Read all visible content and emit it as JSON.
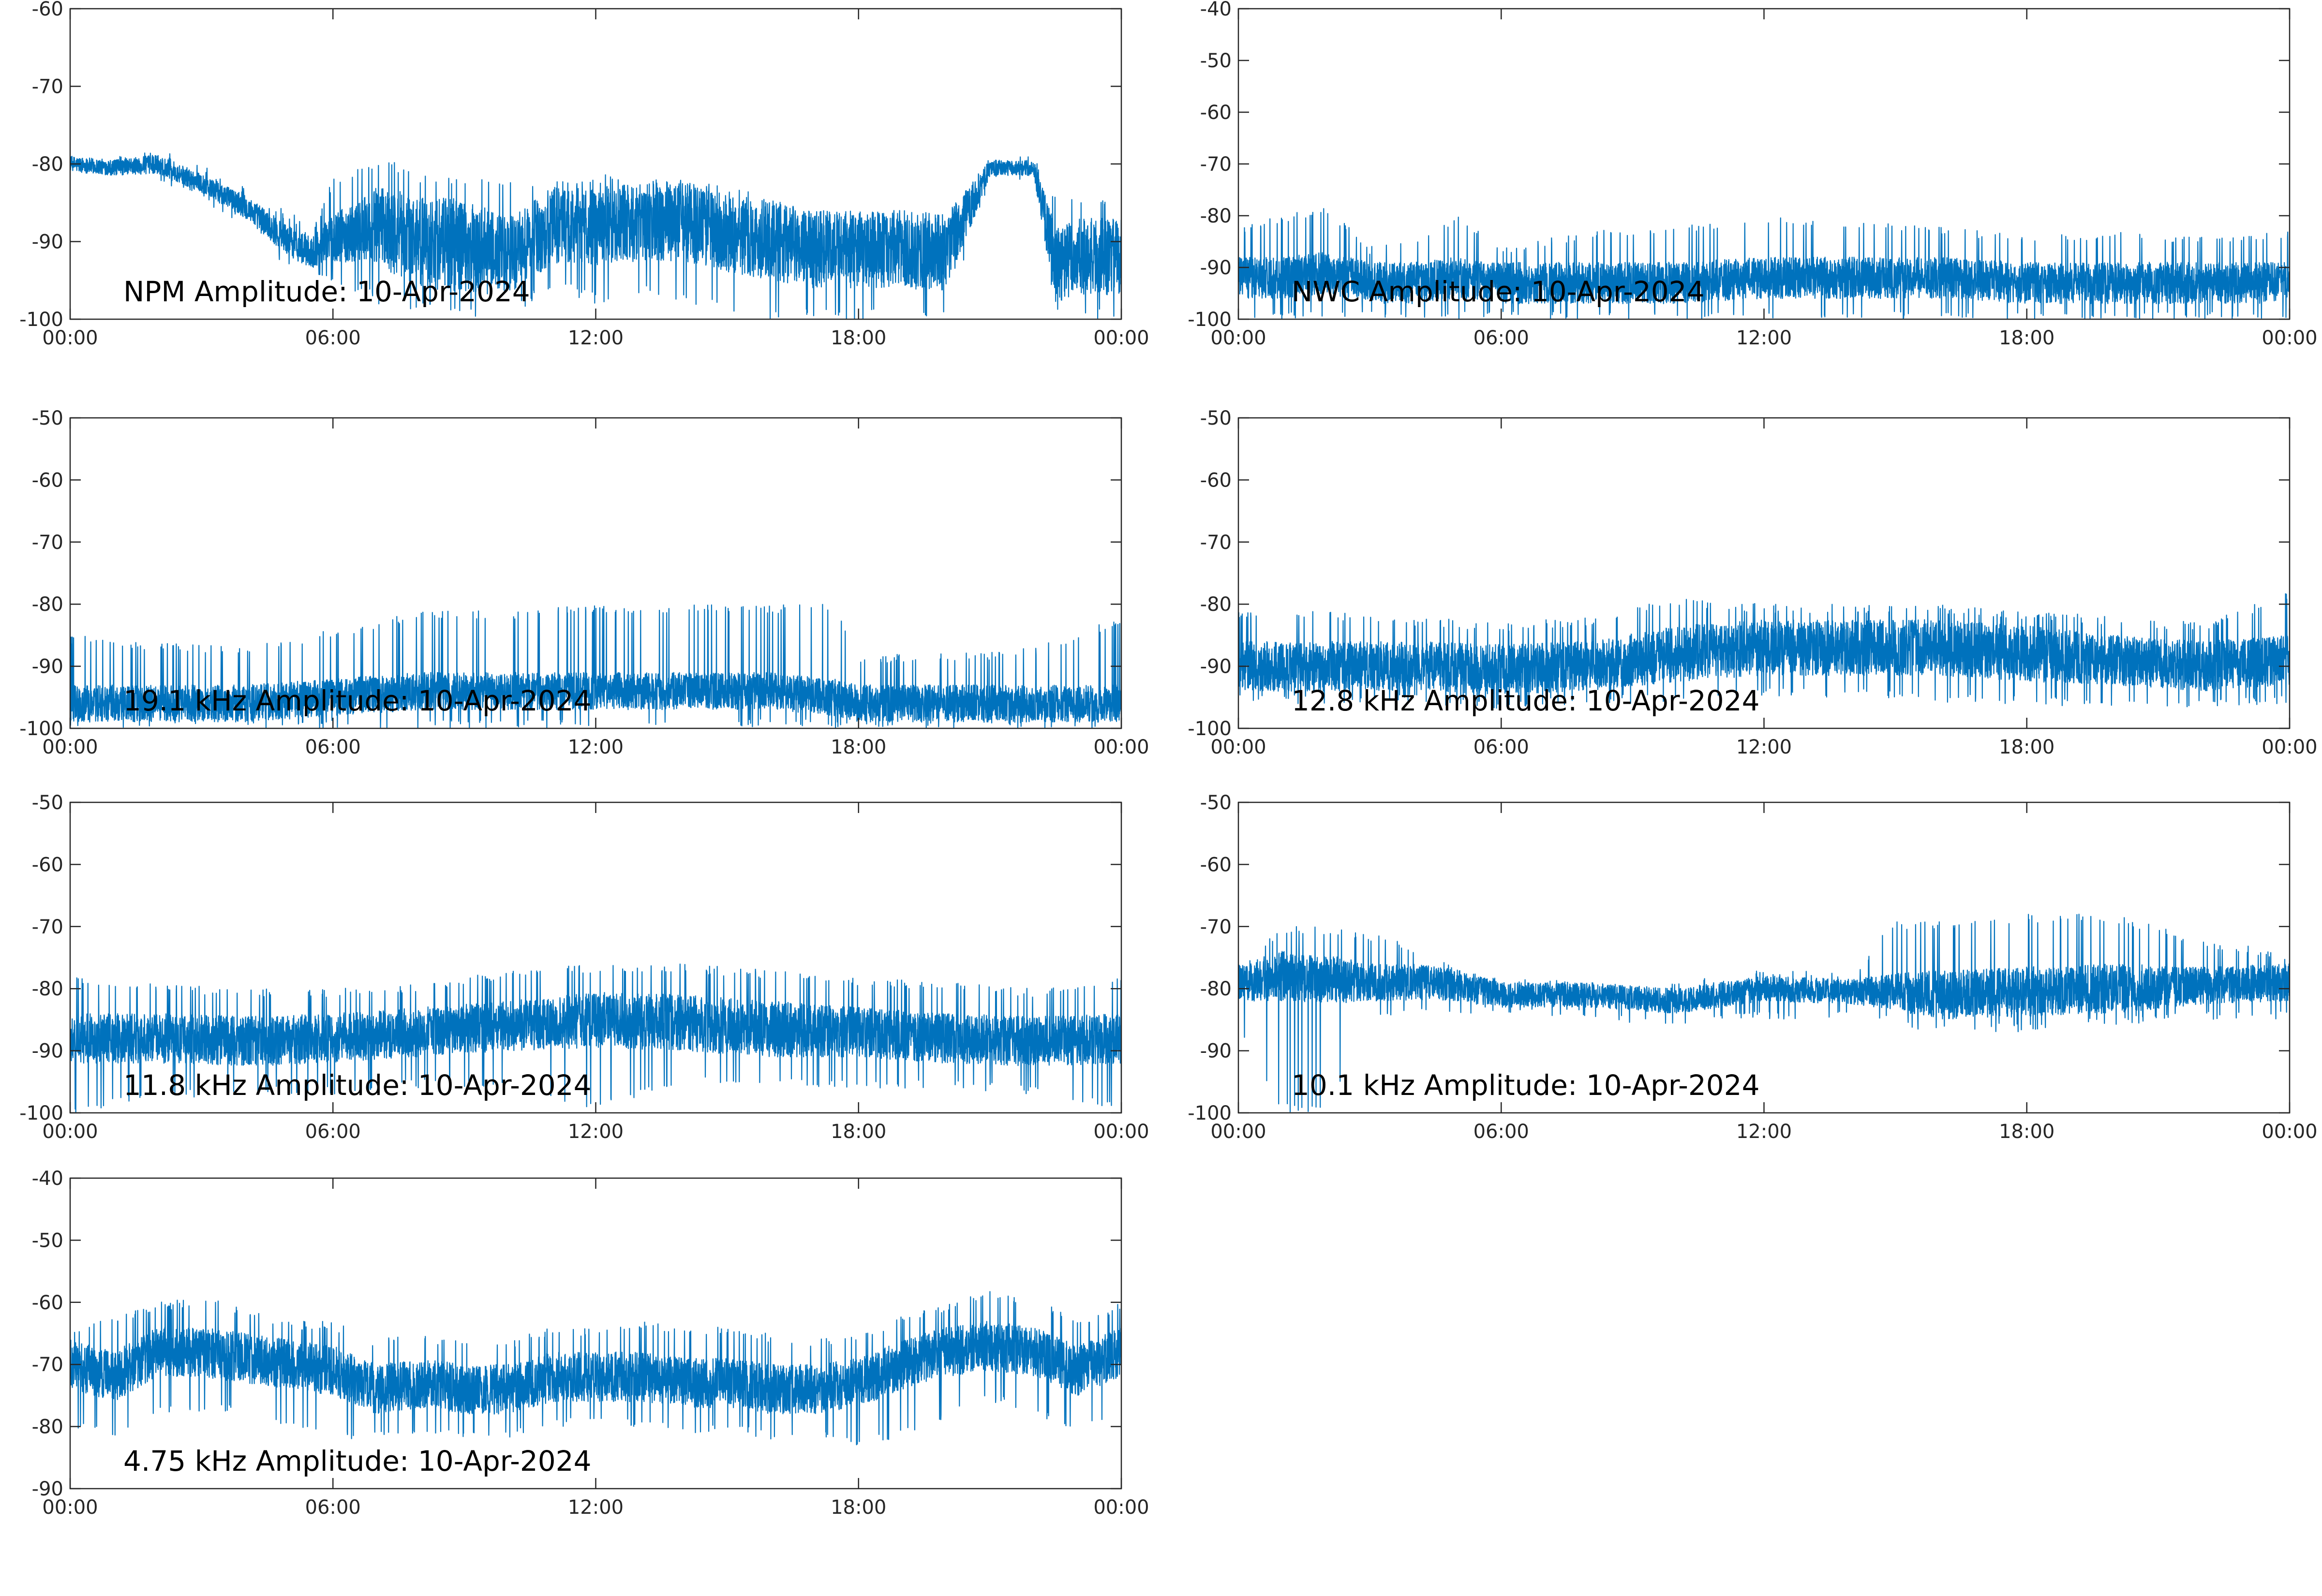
{
  "figure": {
    "colors": {
      "series": "#0072bd",
      "axis": "#262626",
      "background": "#ffffff"
    }
  },
  "chart_data": [
    {
      "type": "line",
      "title": "NPM Amplitude: 10-Apr-2024",
      "xlabel": "",
      "ylabel": "",
      "xlim": [
        "00:00",
        "24:00"
      ],
      "xticks": [
        "00:00",
        "06:00",
        "12:00",
        "18:00",
        "00:00"
      ],
      "ylim": [
        -100,
        -60
      ],
      "yticks": [
        "-60",
        "-70",
        "-80",
        "-90",
        "-100"
      ],
      "grid": false,
      "series": [
        {
          "color": "#0072bd",
          "x_hours": [
            0,
            1,
            2,
            3,
            4,
            5,
            5.5,
            6,
            7,
            8,
            9,
            10,
            11,
            12,
            13,
            14,
            15,
            16,
            17,
            18,
            19,
            20,
            21,
            21.5,
            22,
            22.5,
            23,
            24
          ],
          "center": [
            -80,
            -80.5,
            -80,
            -82.5,
            -85.5,
            -90,
            -91.5,
            -89.5,
            -88,
            -90,
            -90.5,
            -92,
            -88,
            -88,
            -87.5,
            -87.5,
            -89,
            -90,
            -91,
            -91,
            -91,
            -91.5,
            -80.5,
            -80.5,
            -80.5,
            -93,
            -92,
            -92
          ],
          "spread": [
            1,
            1,
            1.2,
            1.2,
            1.5,
            2,
            2,
            3,
            5,
            6,
            6,
            5,
            5,
            5,
            5,
            5,
            5,
            5,
            5,
            5,
            5,
            5,
            1,
            1,
            1,
            5,
            5,
            5
          ],
          "spike_max": [
            -79,
            -79,
            -78,
            -80,
            -83,
            -86,
            -88,
            -82,
            -79,
            -81,
            -82,
            -82,
            -82,
            -81,
            -82,
            -82,
            -83,
            -84,
            -86,
            -86,
            -86,
            -87,
            -79,
            -79,
            -79,
            -84,
            -84,
            -84
          ],
          "spike_min": [
            -81,
            -81,
            -82,
            -85,
            -88,
            -94,
            -95,
            -95,
            -98,
            -99,
            -100,
            -100,
            -96,
            -98,
            -97,
            -98,
            -99,
            -100,
            -100,
            -100,
            -100,
            -100,
            -82,
            -82,
            -82,
            -100,
            -100,
            -100
          ]
        }
      ]
    },
    {
      "type": "line",
      "title": "NWC Amplitude: 10-Apr-2024",
      "xlabel": "",
      "ylabel": "",
      "xlim": [
        "00:00",
        "24:00"
      ],
      "xticks": [
        "00:00",
        "06:00",
        "12:00",
        "18:00",
        "00:00"
      ],
      "ylim": [
        -100,
        -40
      ],
      "yticks": [
        "-40",
        "-50",
        "-60",
        "-70",
        "-80",
        "-90",
        "-100"
      ],
      "grid": false,
      "series": [
        {
          "color": "#0072bd",
          "x_hours": [
            0,
            1,
            2,
            3,
            4,
            5,
            6,
            8,
            10,
            12,
            14,
            16,
            18,
            20,
            22,
            24
          ],
          "center": [
            -92,
            -92,
            -91,
            -93,
            -93,
            -92,
            -93,
            -93,
            -93,
            -92,
            -92,
            -92,
            -93,
            -93,
            -93,
            -93
          ],
          "spread": [
            4,
            4,
            4,
            4,
            4,
            4,
            4,
            4,
            4,
            4,
            4,
            4,
            4,
            4,
            4,
            4
          ],
          "spike_max": [
            -82,
            -80,
            -78,
            -86,
            -84,
            -80,
            -86,
            -83,
            -82,
            -80,
            -81,
            -82,
            -84,
            -83,
            -84,
            -83
          ],
          "spike_min": [
            -100,
            -100,
            -100,
            -100,
            -100,
            -100,
            -100,
            -100,
            -100,
            -100,
            -100,
            -100,
            -100,
            -100,
            -100,
            -100
          ]
        }
      ]
    },
    {
      "type": "line",
      "title": "19.1 kHz Amplitude: 10-Apr-2024",
      "xlabel": "",
      "ylabel": "",
      "xlim": [
        "00:00",
        "24:00"
      ],
      "xticks": [
        "00:00",
        "06:00",
        "12:00",
        "18:00",
        "00:00"
      ],
      "ylim": [
        -100,
        -50
      ],
      "yticks": [
        "-50",
        "-60",
        "-70",
        "-80",
        "-90",
        "-100"
      ],
      "grid": false,
      "series": [
        {
          "color": "#0072bd",
          "x_hours": [
            0,
            2,
            4,
            6,
            8,
            10,
            12,
            14,
            16,
            17.5,
            18,
            20,
            22,
            24
          ],
          "center": [
            -96,
            -96,
            -96,
            -95,
            -94,
            -94,
            -94,
            -94,
            -94,
            -95,
            -96,
            -96,
            -96,
            -96
          ],
          "spread": [
            3,
            3,
            3,
            3,
            3,
            3,
            3,
            3,
            3,
            3,
            3,
            3,
            3,
            3
          ],
          "spike_max": [
            -85,
            -86,
            -87,
            -84,
            -81,
            -81,
            -80,
            -80,
            -80,
            -80,
            -88,
            -88,
            -87,
            -82
          ],
          "spike_min": [
            -100,
            -100,
            -100,
            -100,
            -100,
            -100,
            -100,
            -100,
            -100,
            -100,
            -100,
            -100,
            -100,
            -100
          ]
        }
      ]
    },
    {
      "type": "line",
      "title": "12.8 kHz Amplitude: 10-Apr-2024",
      "xlabel": "",
      "ylabel": "",
      "xlim": [
        "00:00",
        "24:00"
      ],
      "xticks": [
        "00:00",
        "06:00",
        "12:00",
        "18:00",
        "00:00"
      ],
      "ylim": [
        -100,
        -50
      ],
      "yticks": [
        "-50",
        "-60",
        "-70",
        "-80",
        "-90",
        "-100"
      ],
      "grid": false,
      "series": [
        {
          "color": "#0072bd",
          "x_hours": [
            0,
            2,
            4,
            6,
            8,
            10,
            12,
            14,
            16,
            18,
            20,
            22,
            24
          ],
          "center": [
            -90,
            -90,
            -90,
            -90.5,
            -90,
            -88,
            -87,
            -87,
            -87,
            -88,
            -89,
            -90,
            -89
          ],
          "spread": [
            4,
            4,
            4,
            4,
            4,
            4.5,
            4.5,
            4.5,
            4.5,
            4.5,
            4,
            4,
            4
          ],
          "spike_max": [
            -81,
            -81,
            -82,
            -83,
            -82,
            -79,
            -80,
            -80,
            -80,
            -81,
            -82,
            -83,
            -78
          ],
          "spike_min": [
            -96,
            -96,
            -96,
            -97,
            -96,
            -96,
            -95,
            -95,
            -96,
            -96,
            -97,
            -97,
            -96
          ]
        }
      ]
    },
    {
      "type": "line",
      "title": "11.8 kHz Amplitude: 10-Apr-2024",
      "xlabel": "",
      "ylabel": "",
      "xlim": [
        "00:00",
        "24:00"
      ],
      "xticks": [
        "00:00",
        "06:00",
        "12:00",
        "18:00",
        "00:00"
      ],
      "ylim": [
        -100,
        -50
      ],
      "yticks": [
        "-50",
        "-60",
        "-70",
        "-80",
        "-90",
        "-100"
      ],
      "grid": false,
      "series": [
        {
          "color": "#0072bd",
          "x_hours": [
            0,
            2,
            4,
            6,
            8,
            10,
            12,
            14,
            16,
            18,
            20,
            22,
            24
          ],
          "center": [
            -88,
            -88,
            -88.5,
            -88,
            -87,
            -86,
            -85,
            -85.5,
            -86.5,
            -87,
            -88,
            -88.5,
            -88
          ],
          "spread": [
            4,
            4,
            4,
            4,
            4,
            4,
            4.5,
            4.5,
            4.5,
            4,
            4,
            4,
            4
          ],
          "spike_max": [
            -78,
            -79,
            -80,
            -80,
            -79,
            -77,
            -76,
            -76,
            -77,
            -78,
            -79,
            -80,
            -78
          ],
          "spike_min": [
            -100,
            -98,
            -97,
            -97,
            -96,
            -96,
            -100,
            -95,
            -96,
            -96,
            -96,
            -97,
            -100
          ]
        }
      ]
    },
    {
      "type": "line",
      "title": "10.1 kHz Amplitude: 10-Apr-2024",
      "xlabel": "",
      "ylabel": "",
      "xlim": [
        "00:00",
        "24:00"
      ],
      "xticks": [
        "00:00",
        "06:00",
        "12:00",
        "18:00",
        "00:00"
      ],
      "ylim": [
        -100,
        -50
      ],
      "yticks": [
        "-50",
        "-60",
        "-70",
        "-80",
        "-90",
        "-100"
      ],
      "grid": false,
      "series": [
        {
          "color": "#0072bd",
          "x_hours": [
            0,
            1,
            2,
            3,
            4,
            5,
            6,
            8,
            10,
            12,
            14,
            15,
            16,
            18,
            20,
            22,
            24
          ],
          "center": [
            -79,
            -78,
            -78.5,
            -79,
            -79,
            -79.5,
            -81,
            -81,
            -82,
            -80,
            -80.5,
            -80.5,
            -81,
            -80.5,
            -80,
            -79.5,
            -79
          ],
          "spread": [
            3,
            4,
            4,
            3,
            3,
            2.5,
            2,
            2,
            2,
            2,
            2,
            3,
            4,
            4,
            4,
            3,
            3
          ],
          "spike_max": [
            -76,
            -70,
            -70,
            -71,
            -73,
            -77,
            -78,
            -79,
            -79,
            -77,
            -77,
            -69,
            -69,
            -68,
            -68,
            -72,
            -74
          ],
          "spike_min": [
            -87,
            -100,
            -100,
            -85,
            -84,
            -84,
            -84,
            -85,
            -86,
            -85,
            -85,
            -86,
            -87,
            -87,
            -86,
            -85,
            -85
          ]
        }
      ]
    },
    {
      "type": "line",
      "title": "4.75 kHz Amplitude: 10-Apr-2024",
      "xlabel": "",
      "ylabel": "",
      "xlim": [
        "00:00",
        "24:00"
      ],
      "xticks": [
        "00:00",
        "06:00",
        "12:00",
        "18:00",
        "00:00"
      ],
      "ylim": [
        -90,
        -40
      ],
      "yticks": [
        "-40",
        "-50",
        "-60",
        "-70",
        "-80",
        "-90"
      ],
      "grid": false,
      "series": [
        {
          "color": "#0072bd",
          "x_hours": [
            0,
            1,
            2,
            3,
            4,
            5,
            6,
            7,
            8,
            9,
            10,
            11,
            12,
            13,
            14,
            15,
            16,
            17,
            18,
            19,
            20,
            21,
            22,
            23,
            24
          ],
          "center": [
            -70,
            -72,
            -68,
            -68,
            -69,
            -70,
            -71,
            -74,
            -73,
            -74,
            -74,
            -72,
            -72,
            -72,
            -73,
            -73,
            -74,
            -74,
            -73,
            -70,
            -68,
            -67,
            -68,
            -71,
            -68
          ],
          "spread": [
            4,
            4,
            4,
            4,
            4,
            4,
            4,
            4,
            4,
            4,
            4,
            4,
            4,
            4,
            4,
            4,
            4,
            4,
            4,
            4,
            4,
            4,
            4,
            4,
            4
          ],
          "spike_max": [
            -64,
            -62,
            -60,
            -59,
            -61,
            -63,
            -63,
            -66,
            -65,
            -66,
            -66,
            -64,
            -64,
            -63,
            -64,
            -64,
            -65,
            -66,
            -65,
            -62,
            -60,
            -58,
            -59,
            -63,
            -60
          ],
          "spike_min": [
            -80,
            -82,
            -78,
            -78,
            -78,
            -80,
            -82,
            -82,
            -82,
            -82,
            -82,
            -80,
            -80,
            -80,
            -81,
            -81,
            -82,
            -82,
            -83,
            -82,
            -79,
            -76,
            -78,
            -81,
            -78
          ]
        }
      ]
    }
  ]
}
